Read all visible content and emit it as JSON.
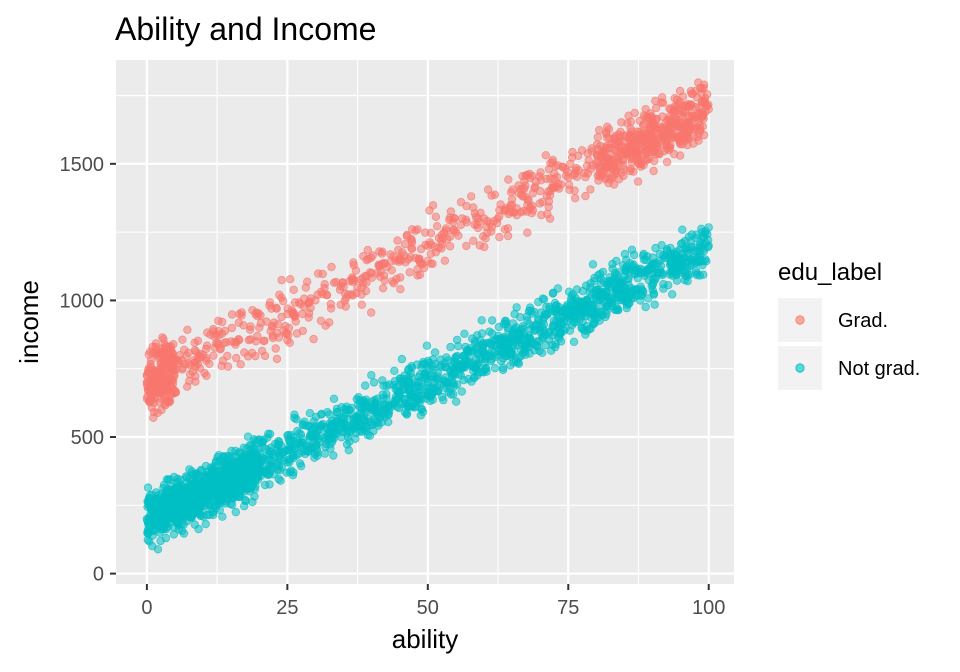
{
  "chart_data": {
    "type": "scatter",
    "title": "Ability and Income",
    "xlabel": "ability",
    "ylabel": "income",
    "xlim": [
      -5.5,
      104.5
    ],
    "ylim": [
      -38,
      1880
    ],
    "x_ticks": [
      0,
      25,
      50,
      75,
      100
    ],
    "y_ticks": [
      0,
      500,
      1000,
      1500
    ],
    "x_tick_labels": [
      "0",
      "25",
      "50",
      "75",
      "100"
    ],
    "y_tick_labels": [
      "0",
      "500",
      "1000",
      "1500"
    ],
    "grid": true,
    "legend": {
      "title": "edu_label",
      "position": "right"
    },
    "series": [
      {
        "name": "Grad.",
        "color": "#F8766D",
        "x": [
          0,
          5,
          10,
          15,
          20,
          25,
          30,
          35,
          40,
          45,
          50,
          55,
          60,
          65,
          70,
          75,
          80,
          85,
          90,
          95,
          100
        ],
        "y": [
          700,
          750,
          800,
          850,
          900,
          950,
          1000,
          1050,
          1100,
          1150,
          1200,
          1250,
          1300,
          1350,
          1400,
          1450,
          1500,
          1550,
          1600,
          1650,
          1700
        ],
        "spread": 55
      },
      {
        "name": "Not grad.",
        "color": "#00BFC4",
        "x": [
          0,
          5,
          10,
          15,
          20,
          25,
          30,
          35,
          40,
          45,
          50,
          55,
          60,
          65,
          70,
          75,
          80,
          85,
          90,
          95,
          100
        ],
        "y": [
          200,
          250,
          300,
          350,
          400,
          450,
          500,
          550,
          600,
          650,
          700,
          750,
          800,
          850,
          900,
          950,
          1000,
          1050,
          1100,
          1150,
          1200
        ],
        "spread": 48
      }
    ]
  }
}
